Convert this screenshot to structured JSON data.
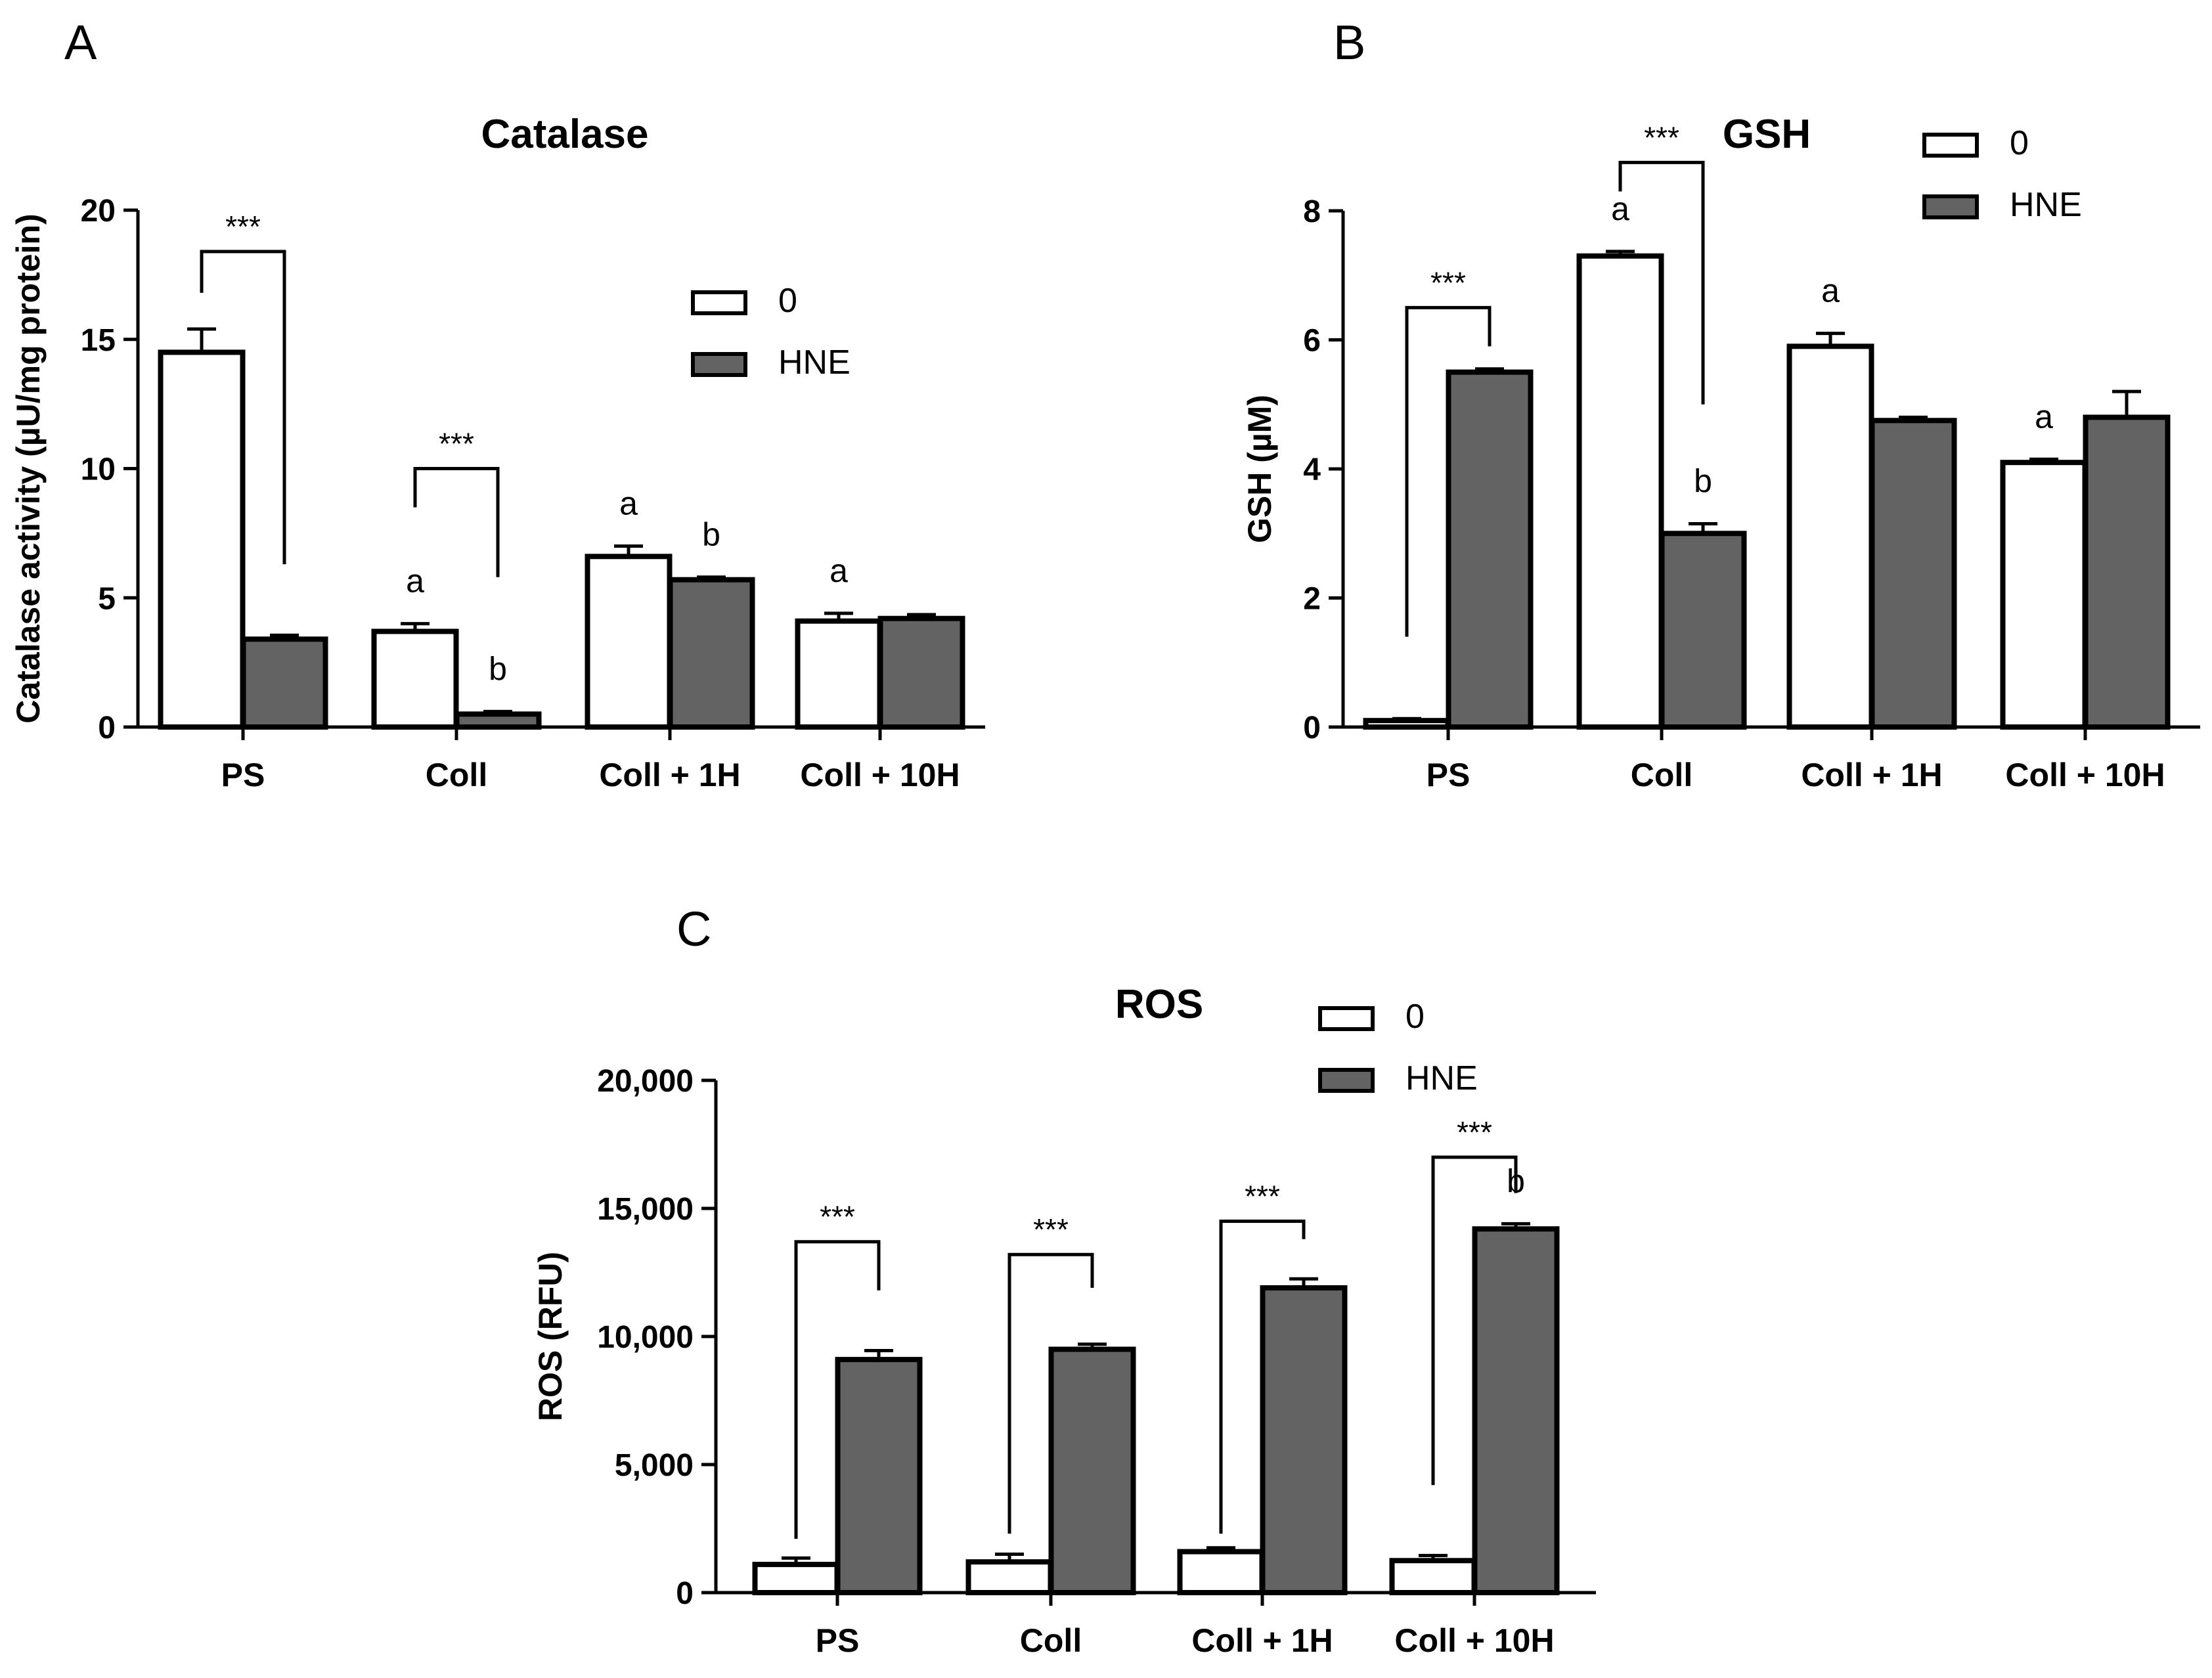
{
  "chart_data": [
    {
      "panel": "A",
      "type": "bar",
      "title": "Catalase",
      "ylabel": "Catalase activity (µU/mg protein)",
      "xlabel": "",
      "ylim": [
        0,
        20
      ],
      "yticks": [
        0,
        5,
        10,
        15,
        20
      ],
      "ytick_labels": [
        "0",
        "5",
        "10",
        "15",
        "20"
      ],
      "categories": [
        "PS",
        "Coll",
        "Coll + 1H",
        "Coll + 10H"
      ],
      "legend": {
        "position": "top-right",
        "entries": [
          "0",
          "HNE"
        ]
      },
      "colors": {
        "0": "#ffffff",
        "HNE": "#636363"
      },
      "series": [
        {
          "name": "0",
          "values": [
            14.5,
            3.7,
            6.6,
            4.1
          ],
          "errors": [
            0.9,
            0.3,
            0.4,
            0.3
          ]
        },
        {
          "name": "HNE",
          "values": [
            3.4,
            0.5,
            5.7,
            4.2
          ],
          "errors": [
            0.15,
            0.1,
            0.1,
            0.15
          ]
        }
      ],
      "annotations": [
        {
          "text": "a",
          "category": 1,
          "series": 0
        },
        {
          "text": "b",
          "category": 1,
          "series": 1
        },
        {
          "text": "a",
          "category": 2,
          "series": 0
        },
        {
          "text": "b",
          "category": 2,
          "series": 1
        },
        {
          "text": "a",
          "category": 3,
          "series": 0
        }
      ],
      "significance": [
        {
          "text": "***",
          "category": 0,
          "bracket_top": 18.4,
          "left_end": 16.8,
          "right_end": 6.3
        },
        {
          "text": "***",
          "category": 1,
          "bracket_top": 10.0,
          "left_end": 8.5,
          "right_end": 5.8
        }
      ]
    },
    {
      "panel": "B",
      "type": "bar",
      "title": "GSH",
      "ylabel": "GSH (µM)",
      "xlabel": "",
      "ylim": [
        0,
        8
      ],
      "yticks": [
        0,
        2,
        4,
        6,
        8
      ],
      "ytick_labels": [
        "0",
        "2",
        "4",
        "6",
        "8"
      ],
      "categories": [
        "PS",
        "Coll",
        "Coll + 1H",
        "Coll + 10H"
      ],
      "legend": {
        "position": "top-right",
        "entries": [
          "0",
          "HNE"
        ]
      },
      "colors": {
        "0": "#ffffff",
        "HNE": "#636363"
      },
      "series": [
        {
          "name": "0",
          "values": [
            0.1,
            7.3,
            5.9,
            4.1
          ],
          "errors": [
            0.03,
            0.07,
            0.2,
            0.05
          ]
        },
        {
          "name": "HNE",
          "values": [
            5.5,
            3.0,
            4.75,
            4.8
          ],
          "errors": [
            0.05,
            0.15,
            0.05,
            0.4
          ]
        }
      ],
      "annotations": [
        {
          "text": "a",
          "category": 1,
          "series": 0
        },
        {
          "text": "b",
          "category": 1,
          "series": 1
        },
        {
          "text": "a",
          "category": 2,
          "series": 0
        },
        {
          "text": "a",
          "category": 3,
          "series": 0
        }
      ],
      "significance": [
        {
          "text": "***",
          "category": 0,
          "bracket_top": 6.5,
          "left_end": 1.4,
          "right_end": 5.9
        },
        {
          "text": "***",
          "category": 1,
          "bracket_top": 8.75,
          "left_end": 8.3,
          "right_end": 5.0
        }
      ]
    },
    {
      "panel": "C",
      "type": "bar",
      "title": "ROS",
      "ylabel": "ROS (RFU)",
      "xlabel": "",
      "ylim": [
        0,
        20000
      ],
      "yticks": [
        0,
        5000,
        10000,
        15000,
        20000
      ],
      "ytick_labels": [
        "0",
        "5,000",
        "10,000",
        "15,000",
        "20,000"
      ],
      "categories": [
        "PS",
        "Coll",
        "Coll + 1H",
        "Coll + 10H"
      ],
      "legend": {
        "position": "top-center",
        "entries": [
          "0",
          "HNE"
        ]
      },
      "colors": {
        "0": "#ffffff",
        "HNE": "#636363"
      },
      "series": [
        {
          "name": "0",
          "values": [
            1100,
            1200,
            1600,
            1250
          ],
          "errors": [
            250,
            300,
            150,
            200
          ]
        },
        {
          "name": "HNE",
          "values": [
            9100,
            9500,
            11900,
            14200
          ],
          "errors": [
            350,
            200,
            350,
            200
          ]
        }
      ],
      "annotations": [
        {
          "text": "b",
          "category": 3,
          "series": 1
        }
      ],
      "significance": [
        {
          "text": "***",
          "category": 0,
          "bracket_top": 13700,
          "left_end": 2100,
          "right_end": 11800
        },
        {
          "text": "***",
          "category": 1,
          "bracket_top": 13200,
          "left_end": 2300,
          "right_end": 11900
        },
        {
          "text": "***",
          "category": 2,
          "bracket_top": 14500,
          "left_end": 2300,
          "right_end": 13800
        },
        {
          "text": "***",
          "category": 3,
          "bracket_top": 17000,
          "left_end": 4200,
          "right_end": 15600
        }
      ]
    }
  ]
}
